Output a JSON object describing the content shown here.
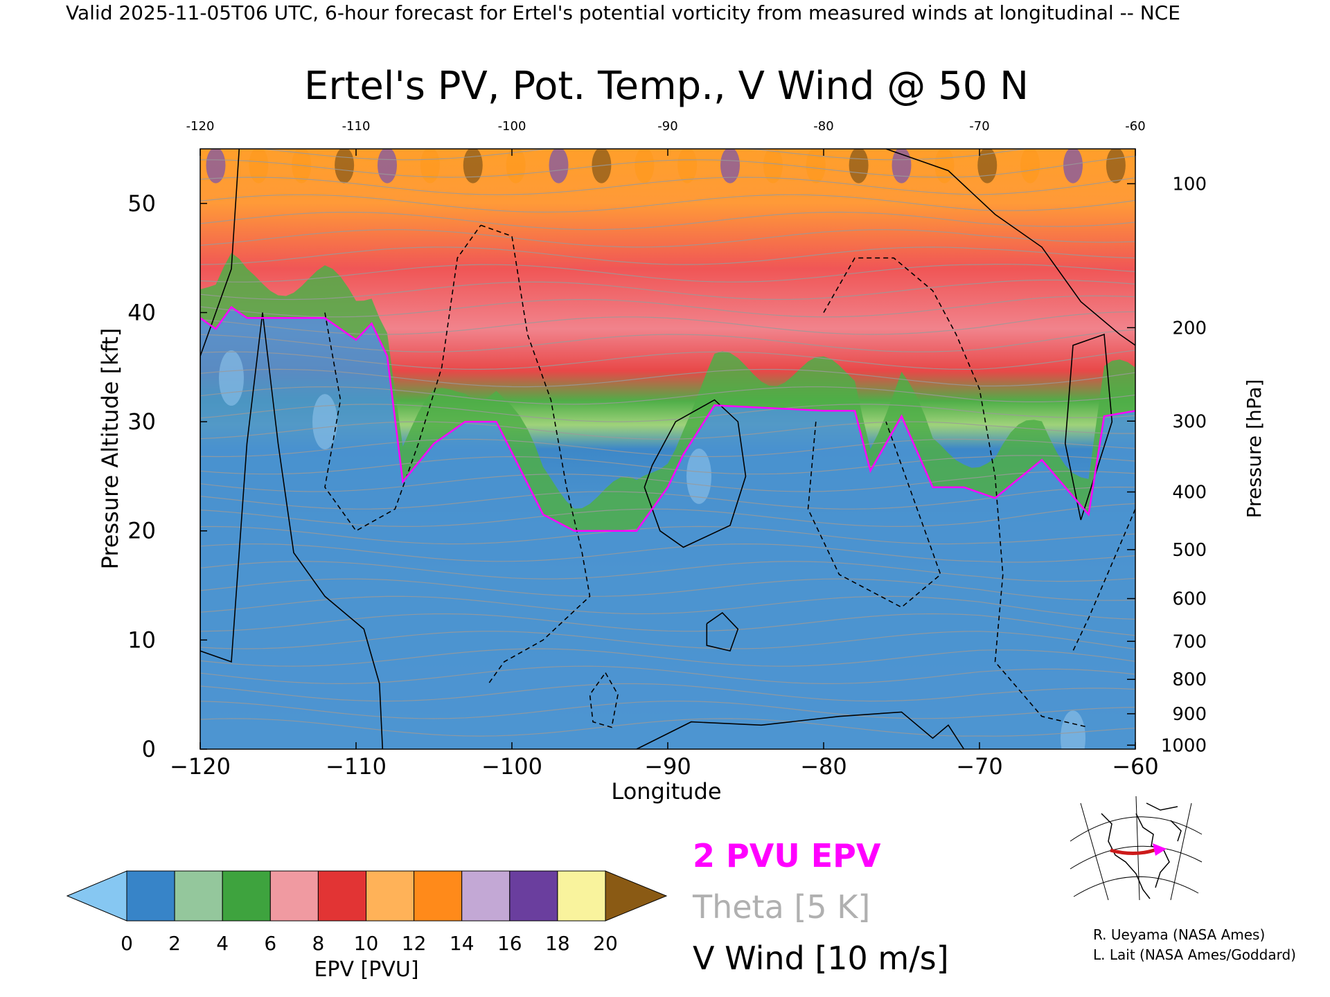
{
  "header": {
    "valid_line": "Valid 2025-11-05T06 UTC, 6-hour forecast for Ertel's potential vorticity from measured winds at longitudinal -- NCE"
  },
  "chart_data": {
    "type": "heatmap",
    "title": "Ertel's PV, Pot. Temp., V Wind @ 50 N",
    "xlabel": "Longitude",
    "ylabel_left": "Pressure Altitude [kft]",
    "ylabel_right": "Pressure [hPa]",
    "xlim": [
      -120,
      -60
    ],
    "ylim": [
      0,
      55
    ],
    "x_ticks": [
      -120,
      -110,
      -100,
      -90,
      -80,
      -70,
      -60
    ],
    "x_tick_labels": [
      "−120",
      "−110",
      "−100",
      "−90",
      "−80",
      "−70",
      "−60"
    ],
    "top_tick_labels": [
      "-120",
      "-110",
      "-100",
      "-90",
      "-80",
      "-70",
      "-60"
    ],
    "y_ticks": [
      0,
      10,
      20,
      30,
      40,
      50
    ],
    "y_tick_labels": [
      "0",
      "10",
      "20",
      "30",
      "40",
      "50"
    ],
    "pressure_ticks": [
      {
        "hpa": 100,
        "label": "100"
      },
      {
        "hpa": 200,
        "label": "200"
      },
      {
        "hpa": 300,
        "label": "300"
      },
      {
        "hpa": 400,
        "label": "400"
      },
      {
        "hpa": 500,
        "label": "500"
      },
      {
        "hpa": 600,
        "label": "600"
      },
      {
        "hpa": 700,
        "label": "700"
      },
      {
        "hpa": 800,
        "label": "800"
      },
      {
        "hpa": 900,
        "label": "900"
      },
      {
        "hpa": 1000,
        "label": "1000"
      }
    ],
    "pv_2pvu_kft": [
      {
        "lon": -120,
        "kft": 39.5
      },
      {
        "lon": -119,
        "kft": 38.5
      },
      {
        "lon": -118,
        "kft": 40.5
      },
      {
        "lon": -117,
        "kft": 39.5
      },
      {
        "lon": -112,
        "kft": 39.5
      },
      {
        "lon": -110,
        "kft": 37.5
      },
      {
        "lon": -109,
        "kft": 39.0
      },
      {
        "lon": -108,
        "kft": 36.0
      },
      {
        "lon": -107,
        "kft": 24.5
      },
      {
        "lon": -105,
        "kft": 28.0
      },
      {
        "lon": -103,
        "kft": 30.0
      },
      {
        "lon": -101,
        "kft": 30.0
      },
      {
        "lon": -98,
        "kft": 21.5
      },
      {
        "lon": -96,
        "kft": 20.0
      },
      {
        "lon": -92,
        "kft": 20.0
      },
      {
        "lon": -90,
        "kft": 24.0
      },
      {
        "lon": -89,
        "kft": 27.0
      },
      {
        "lon": -87,
        "kft": 31.5
      },
      {
        "lon": -80,
        "kft": 31.0
      },
      {
        "lon": -78,
        "kft": 31.0
      },
      {
        "lon": -77,
        "kft": 25.5
      },
      {
        "lon": -75,
        "kft": 30.5
      },
      {
        "lon": -73,
        "kft": 24.0
      },
      {
        "lon": -71,
        "kft": 24.0
      },
      {
        "lon": -69,
        "kft": 23.0
      },
      {
        "lon": -66,
        "kft": 26.5
      },
      {
        "lon": -63,
        "kft": 21.5
      },
      {
        "lon": -62,
        "kft": 30.5
      },
      {
        "lon": -60,
        "kft": 31.0
      }
    ],
    "pv_field_bands": [
      {
        "name": "stratosphere-top",
        "colors": [
          "#7d55a8",
          "#ff9a1f",
          "#f3d27a",
          "#8a5a1a"
        ]
      },
      {
        "name": "stratosphere-mid",
        "colors": [
          "#e63a3a",
          "#f2808a"
        ]
      },
      {
        "name": "tropopause-layer",
        "colors": [
          "#3aa83a",
          "#9bd46a"
        ]
      },
      {
        "name": "troposphere",
        "colors": [
          "#2e7fc4",
          "#5a9fd6",
          "#86bce6"
        ]
      }
    ],
    "colorbar": {
      "label": "EPV [PVU]",
      "tick_labels": [
        "0",
        "2",
        "4",
        "6",
        "8",
        "10",
        "12",
        "14",
        "16",
        "18",
        "20"
      ],
      "colors": [
        "#3784c8",
        "#94c79c",
        "#3ea33e",
        "#f09aa1",
        "#e23434",
        "#ffb258",
        "#ff8a1a",
        "#c3a8d5",
        "#6a3e9e",
        "#f9f39d"
      ],
      "low_extend_color": "#86c7f2",
      "high_extend_color": "#8a5a14"
    },
    "legend": [
      {
        "text": "2 PVU EPV",
        "color": "#ff00ff"
      },
      {
        "text": "Theta [5 K]",
        "color": "#b0b0b0"
      },
      {
        "text": "V Wind [10 m/s]",
        "color": "#000000"
      }
    ]
  },
  "credits": {
    "line1": "R. Ueyama (NASA Ames)",
    "line2": "L. Lait (NASA Ames/Goddard)"
  }
}
